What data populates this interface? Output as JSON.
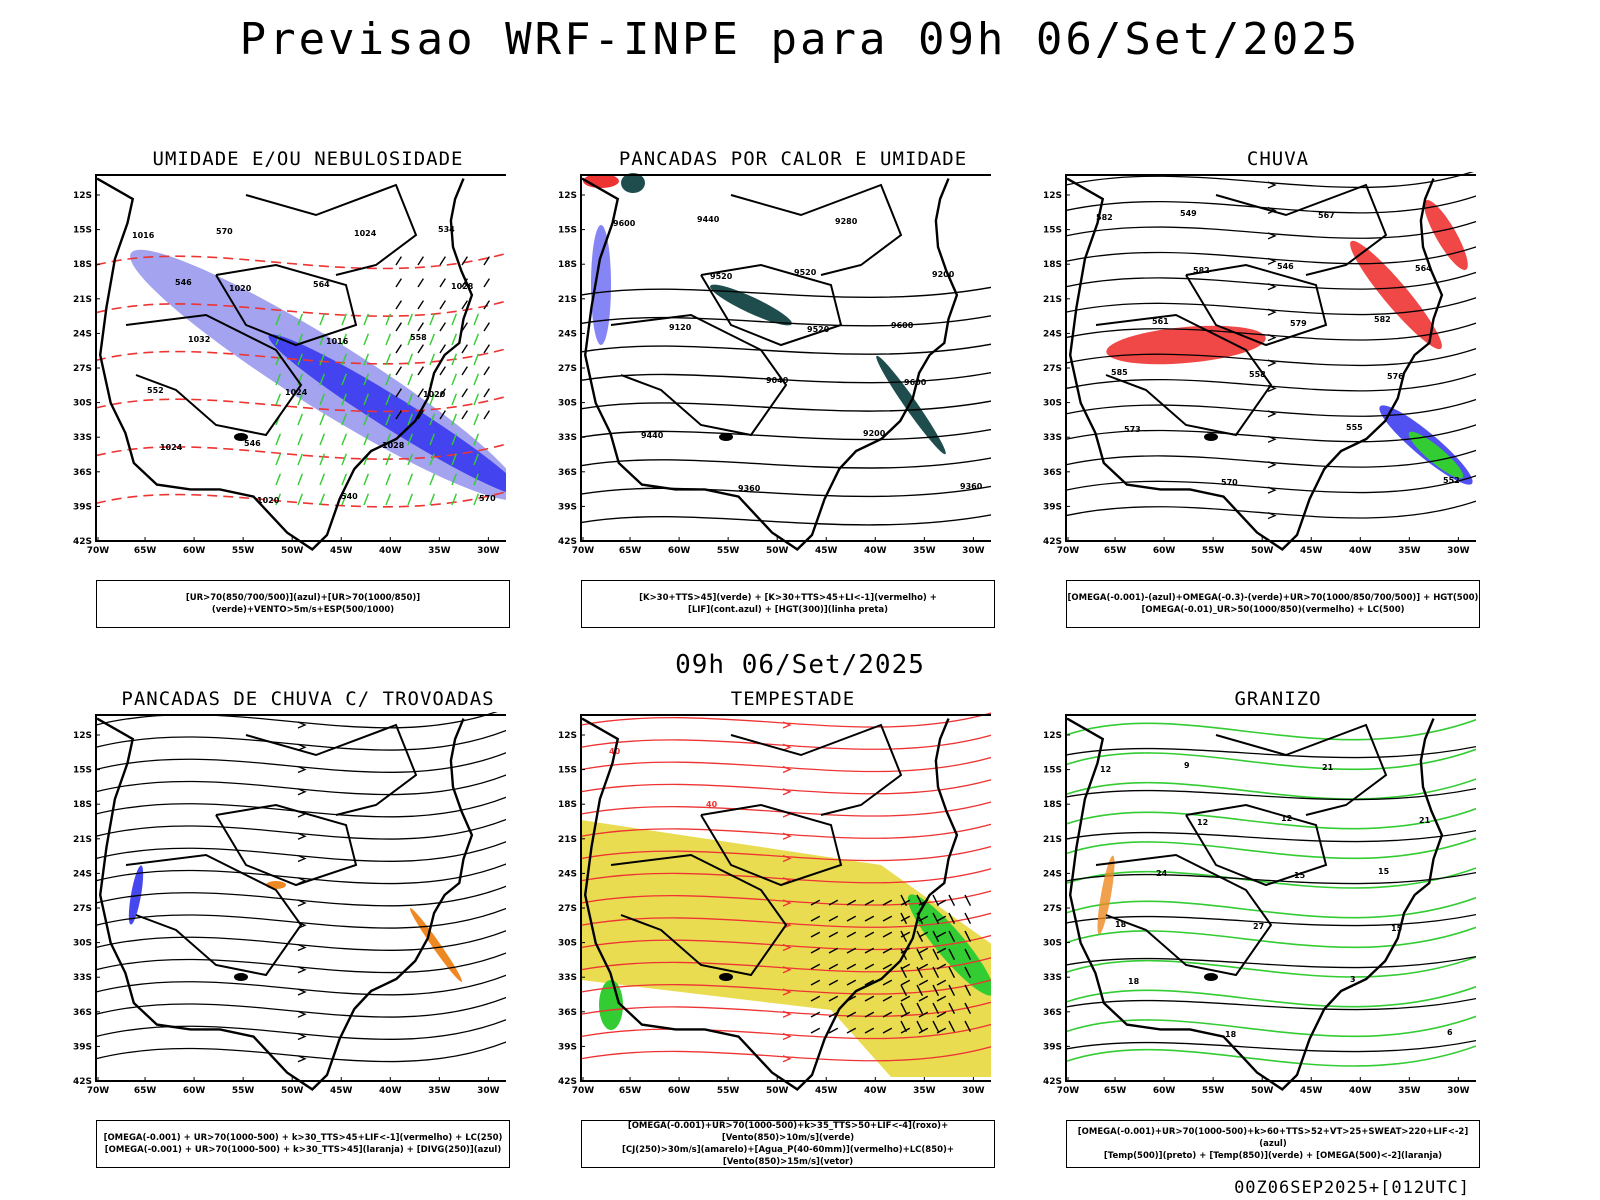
{
  "title": "Previsao WRF-INPE  para 09h 06/Set/2025",
  "mid_date": "09h 06/Set/2025",
  "footer_code": "00Z06SEP2025+[012UTC]",
  "axes": {
    "lat_labels": [
      "12S",
      "15S",
      "18S",
      "21S",
      "24S",
      "27S",
      "30S",
      "33S",
      "36S",
      "39S",
      "42S"
    ],
    "lon_labels": [
      "70W",
      "65W",
      "60W",
      "55W",
      "50W",
      "45W",
      "40W",
      "35W",
      "30W"
    ]
  },
  "colors": {
    "blue_dark": "#3333ee",
    "blue_light": "#9999ee",
    "green": "#33cc33",
    "red": "#ee3333",
    "teal": "#1f4d4d",
    "orange": "#ee8822",
    "yellow": "#e6d633"
  },
  "panels": [
    {
      "id": "umidade",
      "title": "UMIDADE E/OU NEBULOSIDADE",
      "legend_lines": [
        "[UR>70(850/700/500)](azul)+[UR>70(1000/850)](verde)+VENTO>5m/s+ESP(500/1000)"
      ],
      "labels": [
        "1016",
        "1020",
        "1016",
        "1020",
        "1024",
        "1020",
        "1024",
        "1028",
        "1032",
        "1024",
        "1028",
        "570",
        "570",
        "564",
        "558",
        "552",
        "546",
        "540",
        "534",
        "546"
      ]
    },
    {
      "id": "pancadas_calor",
      "title": "PANCADAS POR CALOR E UMIDADE",
      "legend_lines": [
        "[K>30+TTS>45](verde) + [K>30+TTS>45+LI<-1](vermelho) +",
        "[LIF](cont.azul) + [HGT(300)](linha preta)"
      ],
      "labels": [
        "9600",
        "9520",
        "9520",
        "9600",
        "9440",
        "9360",
        "9280",
        "9200",
        "9120",
        "9040",
        "9200",
        "9360",
        "9440",
        "9520",
        "9600"
      ]
    },
    {
      "id": "chuva",
      "title": "CHUVA",
      "legend_lines": [
        "[OMEGA(-0.001)-(azul)+OMEGA(-0.3)-(verde)+UR>70(1000/850/700/500)] + HGT(500)",
        "[OMEGA(-0.01)_UR>50(1000/850)(vermelho) + LC(500)"
      ],
      "labels": [
        "582",
        "582",
        "579",
        "576",
        "573",
        "570",
        "567",
        "564",
        "561",
        "558",
        "555",
        "552",
        "549",
        "546",
        "582",
        "585"
      ]
    },
    {
      "id": "pancadas_trovoadas",
      "title": "PANCADAS DE CHUVA C/ TROVOADAS",
      "legend_lines": [
        "[OMEGA(-0.001) + UR>70(1000-500) + k>30_TTS>45+LIF<-1](vermelho) + LC(250)",
        "[OMEGA(-0.001) + UR>70(1000-500) + k>30_TTS>45](laranja) + [DIVG(250)](azul)"
      ],
      "labels": []
    },
    {
      "id": "tempestade",
      "title": "TEMPESTADE",
      "legend_lines": [
        "[OMEGA(-0.001)+UR>70(1000-500)+k>35_TTS>50+LIF<-4](roxo)+[Vento(850)>10m/s](verde)",
        "[CJ(250)>30m/s](amarelo)+[Agua_P(40-60mm)](vermelho)+LC(850)+[Vento(850)>15m/s](vetor)"
      ],
      "labels": [
        "40",
        "40"
      ]
    },
    {
      "id": "granizo",
      "title": "GRANIZO",
      "legend_lines": [
        "[OMEGA(-0.001)+UR>70(1000-500)+k>60+TTS>52+VT>25+SWEAT>220+LIF<-2](azul)",
        "[Temp(500)](preto) + [Temp(850)](verde) + [OMEGA(500)<-2](laranja)"
      ],
      "labels": [
        "12",
        "12",
        "15",
        "15",
        "18",
        "18",
        "21",
        "21",
        "24",
        "27",
        "3",
        "6",
        "9",
        "12",
        "15",
        "18"
      ]
    }
  ]
}
